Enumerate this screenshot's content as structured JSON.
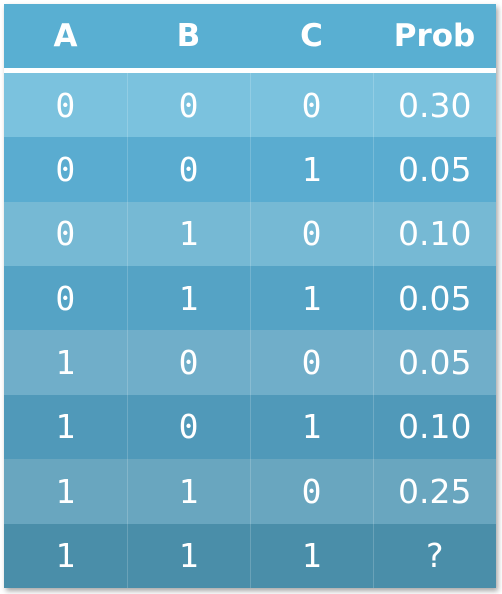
{
  "table": {
    "headers": [
      "A",
      "B",
      "C",
      "Prob"
    ],
    "rows": [
      {
        "a": "0",
        "b": "0",
        "c": "0",
        "prob": "0.30",
        "bg": "#7bc2de"
      },
      {
        "a": "0",
        "b": "0",
        "c": "1",
        "prob": "0.05",
        "bg": "#5aacd0"
      },
      {
        "a": "0",
        "b": "1",
        "c": "0",
        "prob": "0.10",
        "bg": "#76b9d4"
      },
      {
        "a": "0",
        "b": "1",
        "c": "1",
        "prob": "0.05",
        "bg": "#55a3c5"
      },
      {
        "a": "1",
        "b": "0",
        "c": "0",
        "prob": "0.05",
        "bg": "#70aec9"
      },
      {
        "a": "1",
        "b": "0",
        "c": "1",
        "prob": "0.10",
        "bg": "#5099b9"
      },
      {
        "a": "1",
        "b": "1",
        "c": "0",
        "prob": "0.25",
        "bg": "#69a6bf"
      },
      {
        "a": "1",
        "b": "1",
        "c": "1",
        "prob": "?",
        "bg": "#4a8ea9"
      }
    ]
  }
}
